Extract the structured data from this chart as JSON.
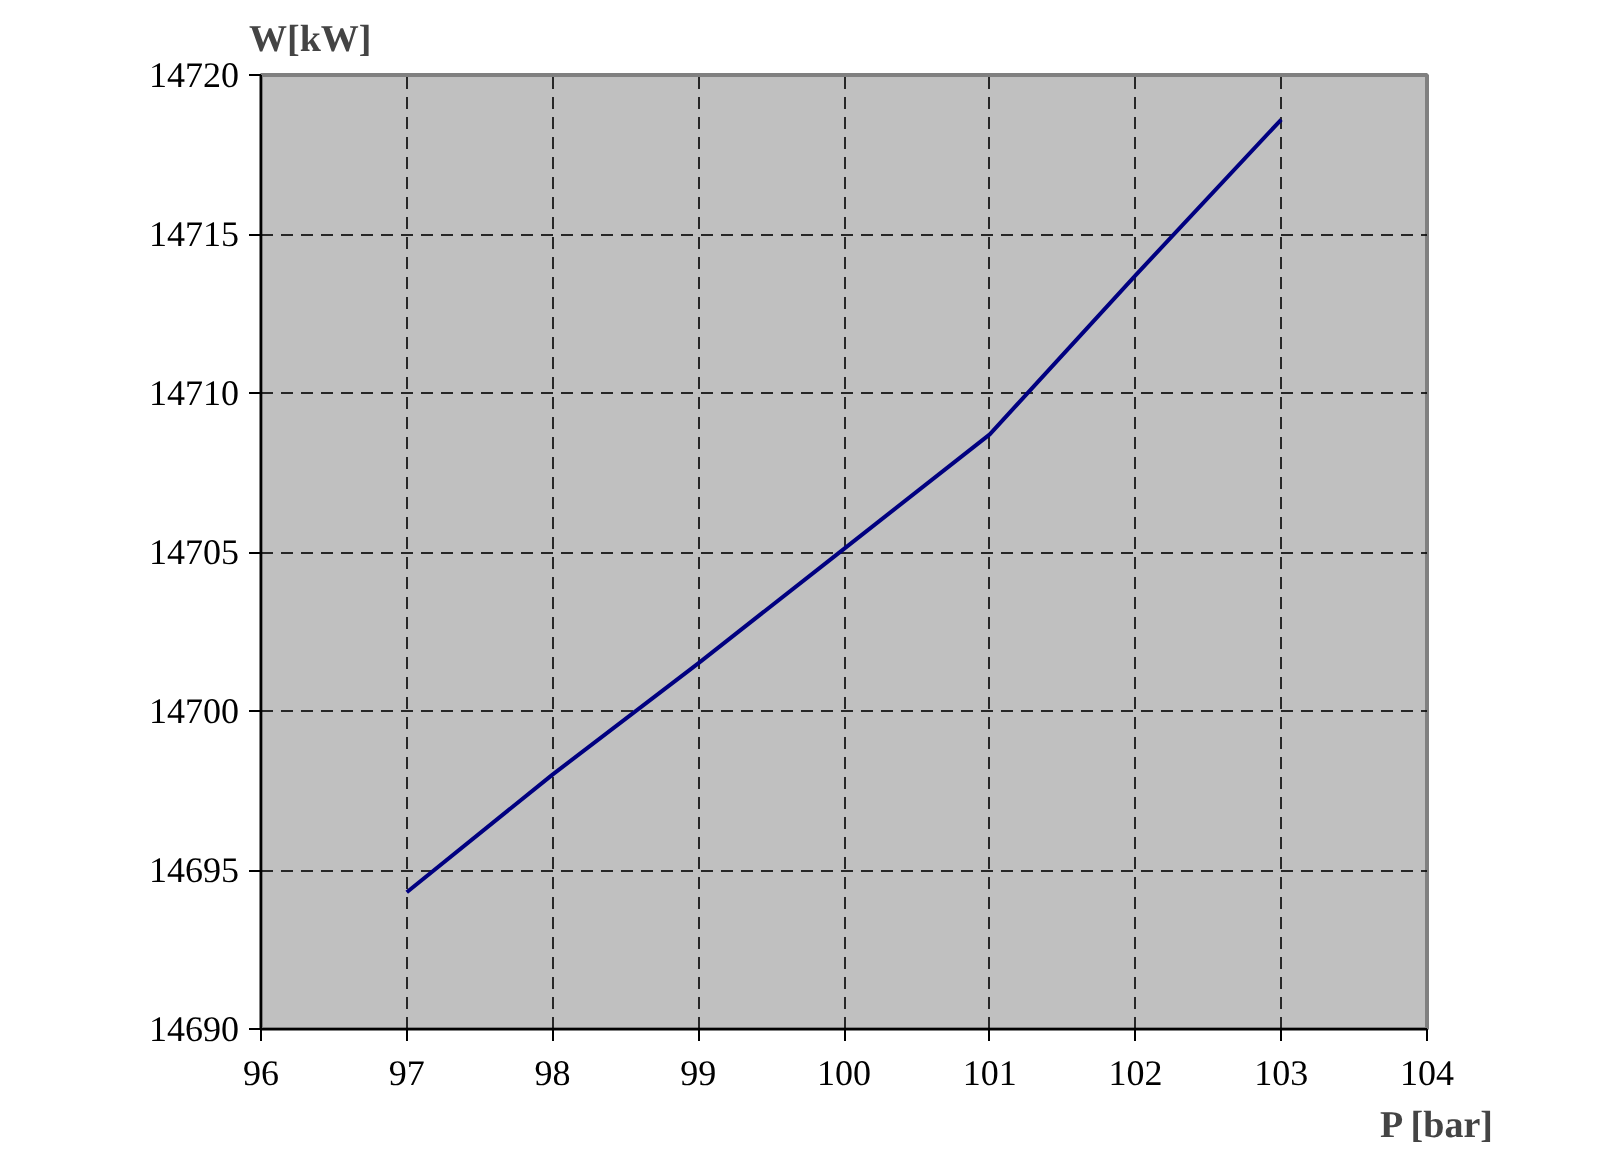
{
  "chart_data": {
    "type": "line",
    "xlabel": "P [bar]",
    "ylabel": "W[kW]",
    "x": [
      97,
      98,
      99,
      100,
      101,
      102,
      103
    ],
    "series": [
      {
        "color": "#000080",
        "values": [
          14694.3,
          14698.0,
          14701.5,
          14705.1,
          14708.7,
          14713.7,
          14718.6
        ]
      }
    ],
    "xlim": [
      96,
      104
    ],
    "xticks": [
      96,
      97,
      98,
      99,
      100,
      101,
      102,
      103,
      104
    ],
    "ylim": [
      14690,
      14720
    ],
    "yticks": [
      14690,
      14695,
      14700,
      14705,
      14710,
      14715,
      14720
    ],
    "grid": true,
    "line_style": "solid"
  }
}
